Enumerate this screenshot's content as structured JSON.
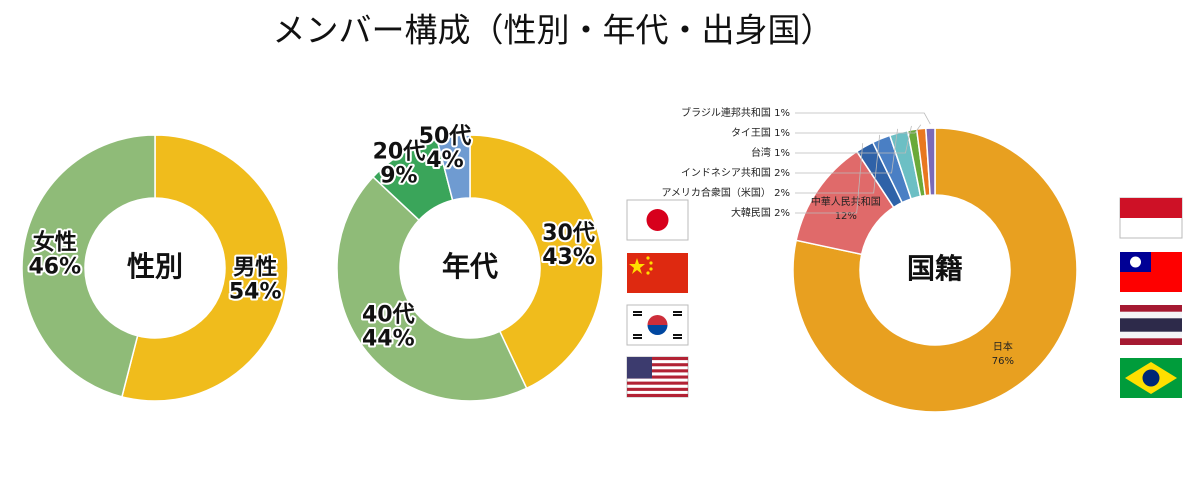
{
  "title": "メンバー構成（性別・年代・出身国）",
  "chart_data": [
    {
      "type": "pie",
      "center_label": "性別",
      "categories": [
        "男性",
        "女性"
      ],
      "values": [
        54,
        46
      ],
      "value_labels": [
        "54%",
        "46%"
      ],
      "colors": [
        "#f0bc1c",
        "#8fbb78"
      ]
    },
    {
      "type": "pie",
      "center_label": "年代",
      "categories": [
        "30代",
        "40代",
        "20代",
        "50代"
      ],
      "values": [
        43,
        44,
        9,
        4
      ],
      "value_labels": [
        "43%",
        "44%",
        "9%",
        "4%"
      ],
      "colors": [
        "#f0bc1c",
        "#8fbb78",
        "#3aa55a",
        "#6f9bd1"
      ]
    },
    {
      "type": "pie",
      "center_label": "国籍",
      "categories": [
        "日本",
        "中華人民共和国",
        "大韓民国",
        "アメリカ合衆国（米国）",
        "インドネシア共和国",
        "台湾",
        "タイ王国",
        "ブラジル連邦共和国"
      ],
      "values": [
        76,
        12,
        2,
        2,
        2,
        1,
        1,
        1
      ],
      "value_labels": [
        "76%",
        "12%",
        "2%",
        "2%",
        "2%",
        "1%",
        "1%",
        "1%"
      ],
      "colors": [
        "#e8a020",
        "#e06a6a",
        "#2f62a8",
        "#4a7fc4",
        "#6cbfc4",
        "#6aaa3a",
        "#e87820",
        "#7a6ab8"
      ]
    }
  ]
}
